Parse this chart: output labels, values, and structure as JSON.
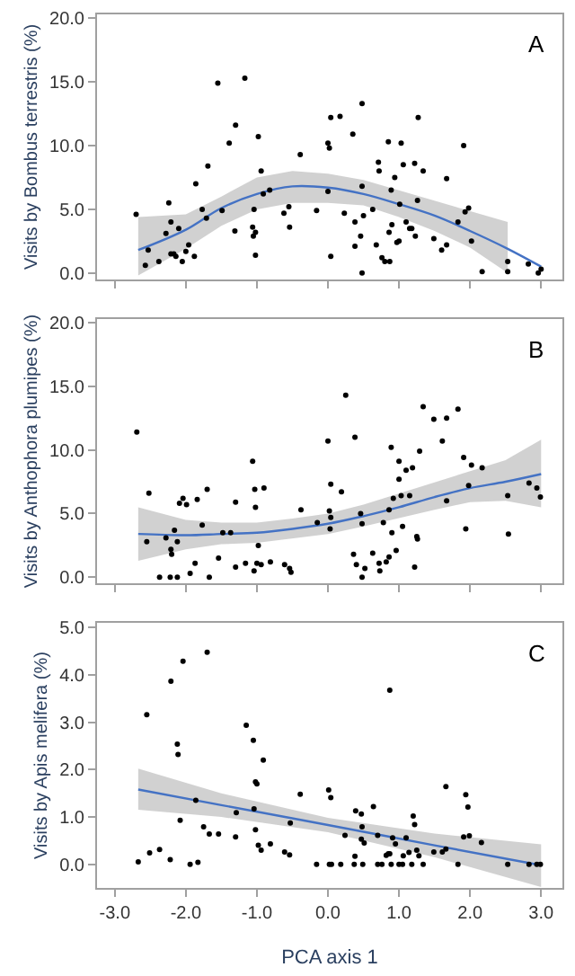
{
  "chart_data": [
    {
      "type": "scatter",
      "ylabel": "Visits by Bombus terrestris (%)",
      "annotations": [
        "A"
      ],
      "tick_labels": "y",
      "xlim": [
        -3.25,
        3.3
      ],
      "xticks": [
        {
          "value": -3,
          "label": null
        },
        {
          "value": -2,
          "label": null
        },
        {
          "value": -1,
          "label": null
        },
        {
          "value": 0,
          "label": null
        },
        {
          "value": 1,
          "label": null
        },
        {
          "value": 2,
          "label": null
        },
        {
          "value": 3,
          "label": null
        }
      ],
      "ylim": [
        -0.5,
        20.3
      ],
      "yticks": [
        {
          "value": 0,
          "label": "0.0"
        },
        {
          "value": 5,
          "label": "5.0"
        },
        {
          "value": 10,
          "label": "10.0"
        },
        {
          "value": 15,
          "label": "15.0"
        },
        {
          "value": 20,
          "label": "20.0"
        }
      ],
      "series": [
        {
          "marker": "circle",
          "color": "#000000",
          "x": [
            -2.7,
            -2.57,
            -2.53,
            -2.38,
            -2.28,
            -2.24,
            -2.21,
            -2.21,
            -2.17,
            -2.14,
            -2.1,
            -2.05,
            -2.0,
            -1.96,
            -1.88,
            -1.86,
            -1.77,
            -1.71,
            -1.69,
            -1.55,
            -1.49,
            -1.39,
            -1.3,
            -1.31,
            -1.17,
            -1.06,
            -1.05,
            -1.04,
            -1.02,
            -1.02,
            -0.98,
            -0.94,
            -0.91,
            -0.82,
            -0.62,
            -0.55,
            -0.54,
            -0.39,
            -0.16,
            0.0,
            0.02,
            0.04,
            0.0,
            0.04,
            0.17,
            0.23,
            0.35,
            0.38,
            0.38,
            0.46,
            0.48,
            0.48,
            0.5,
            0.48,
            0.63,
            0.68,
            0.71,
            0.72,
            0.76,
            0.8,
            0.85,
            0.86,
            0.87,
            0.89,
            0.9,
            0.94,
            0.97,
            1.0,
            1.01,
            1.03,
            1.06,
            1.1,
            1.15,
            1.18,
            1.22,
            1.23,
            1.26,
            1.27,
            1.34,
            1.49,
            1.6,
            1.67,
            1.67,
            1.83,
            1.91,
            1.93,
            1.98,
            2.02,
            2.17,
            2.53,
            2.53,
            2.82,
            2.96,
            3.0
          ],
          "values": [
            4.6,
            0.6,
            1.8,
            0.9,
            3.1,
            5.5,
            4.0,
            1.5,
            1.5,
            1.3,
            3.5,
            0.9,
            1.7,
            2.2,
            1.3,
            7.0,
            5.0,
            4.3,
            8.4,
            14.9,
            4.9,
            10.2,
            11.6,
            3.3,
            15.3,
            3.6,
            2.9,
            5.0,
            3.2,
            1.4,
            10.7,
            8.0,
            6.2,
            6.5,
            4.7,
            5.2,
            3.6,
            9.3,
            4.9,
            10.2,
            9.8,
            12.2,
            6.4,
            1.3,
            12.3,
            4.7,
            10.9,
            4.0,
            2.1,
            2.9,
            13.3,
            6.8,
            4.5,
            0.0,
            5.0,
            2.2,
            8.7,
            8.0,
            1.2,
            0.9,
            10.3,
            3.2,
            0.9,
            6.5,
            3.8,
            7.5,
            2.4,
            2.5,
            5.4,
            10.2,
            8.5,
            4.0,
            3.5,
            3.5,
            8.6,
            2.9,
            5.7,
            12.2,
            8.0,
            2.7,
            1.8,
            7.4,
            2.2,
            4.0,
            10.0,
            4.8,
            5.1,
            2.5,
            0.1,
            0.9,
            0.1,
            0.7,
            0.0,
            0.3
          ]
        },
        {
          "type": "line",
          "color": "#4472c4",
          "x": [
            -2.67,
            -2.0,
            -1.5,
            -1.0,
            -0.5,
            0.0,
            0.5,
            1.0,
            1.5,
            2.0,
            2.53,
            3.0
          ],
          "values": [
            1.8,
            3.4,
            5.1,
            6.2,
            6.8,
            6.7,
            6.2,
            5.4,
            4.5,
            3.3,
            1.9,
            0.5
          ],
          "lower": [
            -0.2,
            1.9,
            3.7,
            5.0,
            5.5,
            5.5,
            5.3,
            4.4,
            3.3,
            2.0,
            0.0,
            null
          ],
          "upper": [
            4.4,
            4.6,
            6.0,
            7.5,
            8.0,
            7.8,
            7.3,
            6.5,
            5.6,
            4.8,
            4.0,
            null
          ]
        }
      ]
    },
    {
      "type": "scatter",
      "ylabel": "Visits by Anthophora plumipes (%)",
      "annotations": [
        "B"
      ],
      "tick_labels": "y",
      "xlim": [
        -3.25,
        3.3
      ],
      "xticks": [
        {
          "value": -3,
          "label": null
        },
        {
          "value": -2,
          "label": null
        },
        {
          "value": -1,
          "label": null
        },
        {
          "value": 0,
          "label": null
        },
        {
          "value": 1,
          "label": null
        },
        {
          "value": 2,
          "label": null
        },
        {
          "value": 3,
          "label": null
        }
      ],
      "ylim": [
        -0.5,
        20.3
      ],
      "yticks": [
        {
          "value": 0,
          "label": "0.0"
        },
        {
          "value": 5,
          "label": "5.0"
        },
        {
          "value": 10,
          "label": "10.0"
        },
        {
          "value": 15,
          "label": "15.0"
        },
        {
          "value": 20,
          "label": "20.0"
        }
      ],
      "series": [
        {
          "marker": "circle",
          "color": "#000000",
          "x": [
            -2.69,
            -2.55,
            -2.52,
            -2.37,
            -2.28,
            -2.22,
            -2.21,
            -2.2,
            -2.16,
            -2.12,
            -2.12,
            -2.09,
            -2.04,
            -1.99,
            -1.94,
            -1.87,
            -1.84,
            -1.77,
            -1.7,
            -1.67,
            -1.54,
            -1.48,
            -1.37,
            -1.3,
            -1.3,
            -1.16,
            -1.06,
            -1.04,
            -1.03,
            -1.02,
            -1.0,
            -0.98,
            -0.94,
            -0.9,
            -0.81,
            -0.61,
            -0.54,
            -0.52,
            -0.38,
            -0.15,
            0.0,
            0.02,
            0.03,
            0.04,
            0.04,
            0.19,
            0.25,
            0.36,
            0.38,
            0.4,
            0.46,
            0.48,
            0.48,
            0.52,
            0.63,
            0.72,
            0.73,
            0.78,
            0.82,
            0.86,
            0.86,
            0.89,
            0.9,
            0.92,
            0.96,
            1.0,
            1.0,
            1.03,
            1.05,
            1.1,
            1.15,
            1.19,
            1.22,
            1.25,
            1.26,
            1.29,
            1.34,
            1.49,
            1.61,
            1.67,
            1.67,
            1.83,
            1.91,
            1.94,
            1.98,
            2.02,
            2.17,
            2.53,
            2.54,
            2.83,
            2.94,
            2.99
          ],
          "values": [
            11.4,
            2.8,
            6.6,
            0.0,
            3.1,
            0.0,
            2.2,
            1.8,
            3.7,
            0.0,
            2.8,
            5.8,
            6.2,
            5.7,
            0.3,
            1.1,
            6.1,
            4.1,
            6.9,
            0.0,
            1.5,
            3.5,
            3.5,
            5.9,
            0.8,
            1.1,
            9.1,
            0.5,
            6.9,
            5.5,
            1.1,
            2.5,
            1.0,
            7.0,
            1.2,
            1.0,
            0.7,
            0.4,
            5.3,
            4.3,
            10.7,
            5.2,
            3.8,
            4.7,
            7.3,
            6.7,
            14.3,
            1.8,
            11.0,
            1.0,
            5.0,
            4.2,
            0.0,
            0.7,
            1.9,
            1.1,
            0.5,
            4.3,
            1.2,
            1.6,
            5.3,
            10.2,
            3.5,
            6.2,
            2.1,
            9.1,
            7.7,
            6.4,
            4.0,
            8.4,
            6.4,
            8.6,
            0.8,
            3.2,
            3.0,
            9.9,
            13.4,
            12.4,
            10.7,
            12.5,
            6.0,
            13.2,
            9.4,
            3.8,
            7.2,
            8.8,
            8.6,
            6.4,
            3.4,
            7.4,
            7.0,
            6.3
          ]
        },
        {
          "type": "line",
          "color": "#4472c4",
          "x": [
            -2.67,
            -2.0,
            -1.5,
            -1.0,
            -0.5,
            0.0,
            0.5,
            1.0,
            1.5,
            2.0,
            2.5,
            3.0
          ],
          "values": [
            3.4,
            3.3,
            3.4,
            3.5,
            3.8,
            4.2,
            4.8,
            5.5,
            6.3,
            7.0,
            7.5,
            8.1
          ],
          "lower": [
            1.3,
            2.2,
            2.6,
            2.7,
            3.0,
            3.4,
            4.0,
            4.6,
            5.3,
            5.9,
            6.0,
            5.5
          ],
          "upper": [
            5.5,
            4.5,
            4.3,
            4.3,
            4.6,
            5.0,
            5.7,
            6.6,
            7.5,
            8.3,
            9.2,
            10.8
          ]
        }
      ]
    },
    {
      "type": "scatter",
      "ylabel": "Visits by Apis melifera (%)",
      "xlabel": "PCA axis 1",
      "annotations": [
        "C"
      ],
      "xlim": [
        -3.25,
        3.3
      ],
      "xticks": [
        {
          "value": -3,
          "label": "-3.0"
        },
        {
          "value": -2,
          "label": "-2.0"
        },
        {
          "value": -1,
          "label": "-1.0"
        },
        {
          "value": 0,
          "label": "0.0"
        },
        {
          "value": 1,
          "label": "1.0"
        },
        {
          "value": 2,
          "label": "2.0"
        },
        {
          "value": 3,
          "label": "3.0"
        }
      ],
      "ylim": [
        -0.5,
        5.1
      ],
      "yticks": [
        {
          "value": 0,
          "label": "0.0"
        },
        {
          "value": 1,
          "label": "1.0"
        },
        {
          "value": 2,
          "label": "2.0"
        },
        {
          "value": 3,
          "label": "3.0"
        },
        {
          "value": 4,
          "label": "4.0"
        },
        {
          "value": 5,
          "label": "5.0"
        }
      ],
      "series": [
        {
          "marker": "circle",
          "color": "#000000",
          "x": [
            -2.67,
            -2.55,
            -2.51,
            -2.37,
            -2.21,
            -2.22,
            -2.12,
            -2.11,
            -2.08,
            -2.04,
            -1.94,
            -1.86,
            -1.83,
            -1.75,
            -1.7,
            -1.67,
            -1.54,
            -1.3,
            -1.29,
            -1.15,
            -1.05,
            -1.04,
            -1.02,
            -1.02,
            -1.0,
            -0.98,
            -0.94,
            -0.91,
            -0.81,
            -0.61,
            -0.54,
            -0.53,
            -0.39,
            -0.16,
            0.01,
            0.04,
            0.02,
            0.05,
            0.18,
            0.24,
            0.37,
            0.39,
            0.38,
            0.47,
            0.48,
            0.49,
            0.47,
            0.51,
            0.64,
            0.7,
            0.7,
            0.76,
            0.82,
            0.85,
            0.87,
            0.87,
            0.89,
            0.91,
            0.95,
            1.0,
            1.05,
            1.06,
            1.1,
            1.14,
            1.18,
            1.2,
            1.22,
            1.25,
            1.28,
            1.34,
            1.49,
            1.61,
            1.66,
            1.66,
            1.83,
            1.91,
            1.94,
            1.97,
            1.99,
            2.16,
            2.53,
            2.83,
            2.94,
            2.99
          ],
          "values": [
            0.05,
            3.16,
            0.24,
            0.31,
            3.87,
            0.1,
            2.54,
            2.32,
            0.93,
            4.29,
            0.0,
            1.35,
            0.04,
            0.79,
            4.48,
            0.64,
            0.64,
            0.58,
            1.09,
            2.94,
            2.62,
            1.17,
            0.73,
            1.74,
            1.7,
            0.4,
            0.3,
            2.2,
            0.43,
            0.26,
            0.2,
            0.87,
            1.48,
            0.0,
            1.57,
            1.41,
            0.0,
            0.0,
            0.0,
            0.61,
            0.0,
            1.13,
            0.17,
            1.06,
            0.79,
            0.0,
            0.53,
            0.45,
            1.22,
            0.61,
            0.0,
            0.0,
            0.19,
            0.22,
            0.22,
            3.68,
            0.0,
            0.56,
            0.43,
            0.0,
            0.0,
            0.18,
            0.56,
            0.25,
            0.0,
            1.02,
            0.84,
            0.3,
            0.18,
            0.0,
            0.26,
            0.26,
            0.32,
            1.64,
            0.0,
            0.58,
            1.47,
            1.21,
            0.6,
            0.46,
            0.0,
            0.0,
            0.0,
            0.0
          ]
        },
        {
          "type": "line",
          "color": "#4472c4",
          "x": [
            -2.67,
            -1.5,
            0.0,
            1.5,
            3.0
          ],
          "values": [
            1.58,
            1.25,
            0.83,
            0.4,
            -0.02
          ],
          "lower": [
            1.15,
            1.0,
            0.68,
            0.15,
            -0.48
          ],
          "upper": [
            2.02,
            1.5,
            0.98,
            0.65,
            0.42
          ]
        }
      ]
    }
  ]
}
